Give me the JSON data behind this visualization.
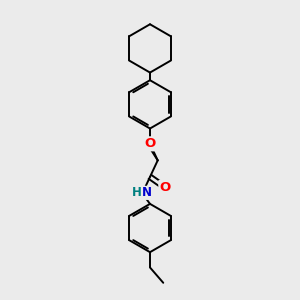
{
  "background_color": "#ebebeb",
  "bond_color": "#000000",
  "line_width": 1.4,
  "atom_colors": {
    "O": "#ff0000",
    "N": "#0000cd",
    "H": "#008080",
    "C": "#000000"
  },
  "font_size": 8.5,
  "figsize": [
    3.0,
    3.0
  ],
  "dpi": 100
}
